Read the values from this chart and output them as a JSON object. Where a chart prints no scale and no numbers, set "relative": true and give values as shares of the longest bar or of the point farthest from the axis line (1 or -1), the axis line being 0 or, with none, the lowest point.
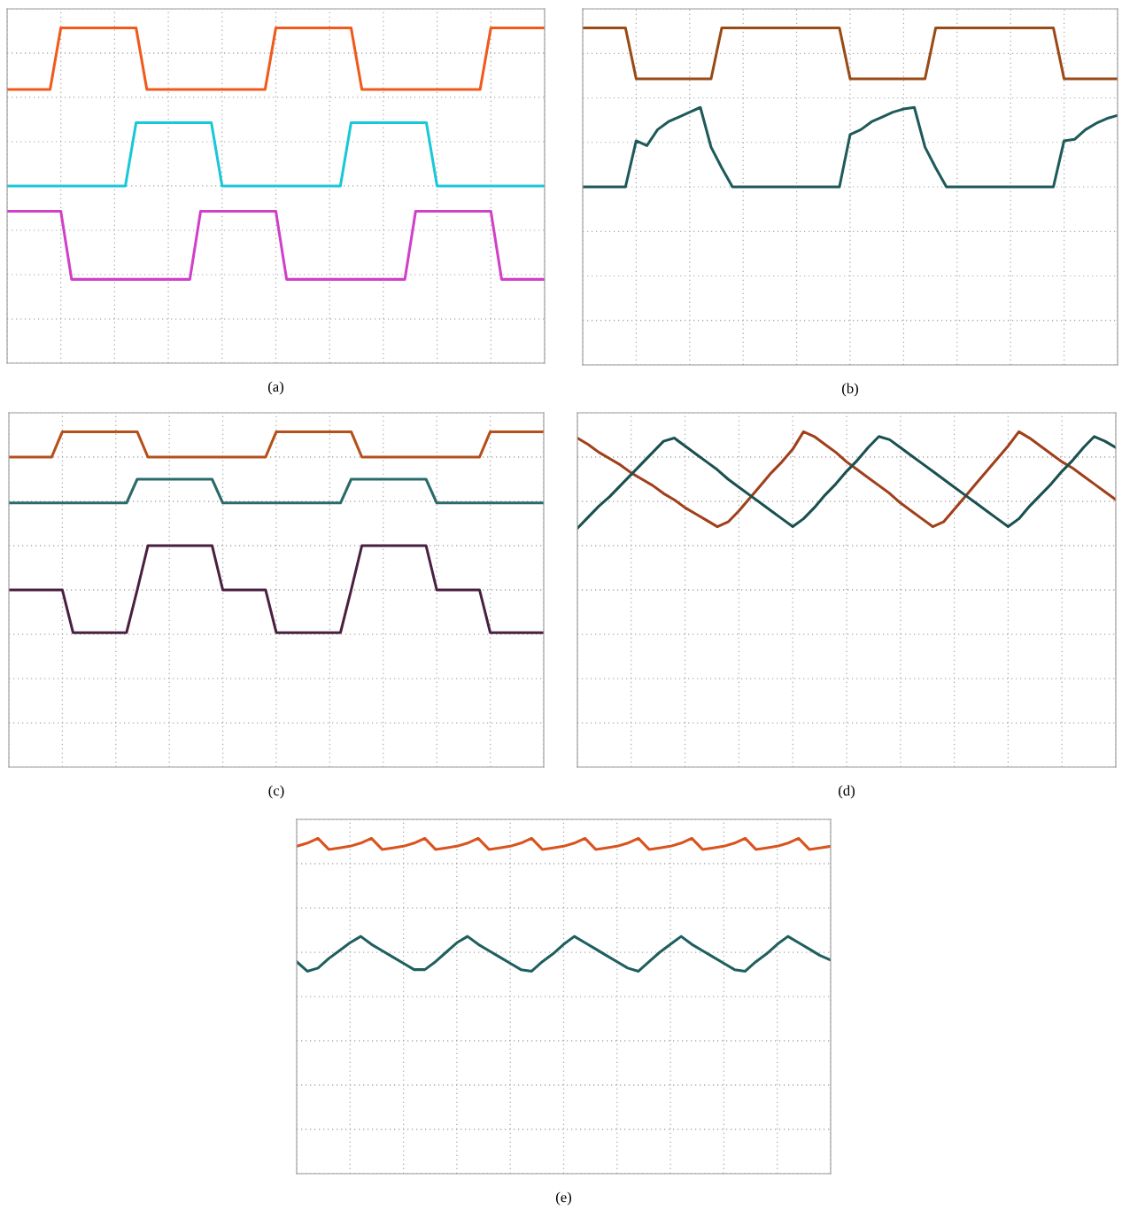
{
  "chart_data": [
    {
      "type": "line",
      "relative": true,
      "grid": true,
      "tick_labels": false,
      "annotations": [
        "(a)"
      ],
      "categories": [
        null,
        null,
        null,
        null,
        null,
        null,
        null,
        null,
        null,
        null,
        null,
        null,
        null,
        null,
        null,
        null,
        null,
        null,
        null,
        null,
        null,
        null,
        null,
        null,
        null,
        null,
        null,
        null,
        null,
        null,
        null,
        null,
        null,
        null,
        null,
        null,
        null,
        null,
        null,
        null,
        null,
        null,
        null,
        null,
        null,
        null,
        null,
        null,
        null,
        null,
        null
      ],
      "series": [
        {
          "color": "#f05a1a",
          "values": [
            0.61,
            0.61,
            0.61,
            0.61,
            0.61,
            1,
            1,
            1,
            1,
            1,
            1,
            1,
            1,
            0.61,
            0.61,
            0.61,
            0.61,
            0.61,
            0.61,
            0.61,
            0.61,
            0.61,
            0.61,
            0.61,
            0.61,
            1,
            1,
            1,
            1,
            1,
            1,
            1,
            1,
            0.61,
            0.61,
            0.61,
            0.61,
            0.61,
            0.61,
            0.61,
            0.61,
            0.61,
            0.61,
            0.61,
            0.61,
            1,
            1,
            1,
            1,
            1,
            1
          ]
        },
        {
          "color": "#19c8d8",
          "values": [
            0,
            0,
            0,
            0,
            0,
            0,
            0,
            0,
            0,
            0,
            0,
            0,
            0.4,
            0.4,
            0.4,
            0.4,
            0.4,
            0.4,
            0.4,
            0.4,
            0,
            0,
            0,
            0,
            0,
            0,
            0,
            0,
            0,
            0,
            0,
            0,
            0.4,
            0.4,
            0.4,
            0.4,
            0.4,
            0.4,
            0.4,
            0.4,
            0,
            0,
            0,
            0,
            0,
            0,
            0,
            0,
            0,
            0,
            0
          ]
        },
        {
          "color": "#d040c8",
          "values": [
            -0.16,
            -0.16,
            -0.16,
            -0.16,
            -0.16,
            -0.16,
            -0.59,
            -0.59,
            -0.59,
            -0.59,
            -0.59,
            -0.59,
            -0.59,
            -0.59,
            -0.59,
            -0.59,
            -0.59,
            -0.59,
            -0.16,
            -0.16,
            -0.16,
            -0.16,
            -0.16,
            -0.16,
            -0.16,
            -0.16,
            -0.59,
            -0.59,
            -0.59,
            -0.59,
            -0.59,
            -0.59,
            -0.59,
            -0.59,
            -0.59,
            -0.59,
            -0.59,
            -0.59,
            -0.16,
            -0.16,
            -0.16,
            -0.16,
            -0.16,
            -0.16,
            -0.16,
            -0.16,
            -0.59,
            -0.59,
            -0.59,
            -0.59,
            -0.59
          ]
        }
      ]
    },
    {
      "type": "line",
      "relative": true,
      "grid": true,
      "tick_labels": false,
      "annotations": [
        "(b)"
      ],
      "categories": [
        null,
        null,
        null,
        null,
        null,
        null,
        null,
        null,
        null,
        null,
        null,
        null,
        null,
        null,
        null,
        null,
        null,
        null,
        null,
        null,
        null,
        null,
        null,
        null,
        null,
        null,
        null,
        null,
        null,
        null,
        null,
        null,
        null,
        null,
        null,
        null,
        null,
        null,
        null,
        null,
        null,
        null,
        null,
        null,
        null,
        null,
        null,
        null,
        null,
        null,
        null
      ],
      "series": [
        {
          "color": "#9a4a14",
          "values": [
            1,
            1,
            1,
            1,
            1,
            0.68,
            0.68,
            0.68,
            0.68,
            0.68,
            0.68,
            0.68,
            0.68,
            1,
            1,
            1,
            1,
            1,
            1,
            1,
            1,
            1,
            1,
            1,
            1,
            0.68,
            0.68,
            0.68,
            0.68,
            0.68,
            0.68,
            0.68,
            0.68,
            1,
            1,
            1,
            1,
            1,
            1,
            1,
            1,
            1,
            1,
            1,
            1,
            0.68,
            0.68,
            0.68,
            0.68,
            0.68,
            0.68
          ]
        },
        {
          "color": "#1f5a5a",
          "values": [
            0,
            0,
            0,
            0,
            0,
            0.29,
            0.26,
            0.36,
            0.41,
            0.44,
            0.47,
            0.5,
            0.25,
            0.12,
            0,
            0,
            0,
            0,
            0,
            0,
            0,
            0,
            0,
            0,
            0,
            0.33,
            0.36,
            0.41,
            0.44,
            0.47,
            0.49,
            0.5,
            0.25,
            0.12,
            0,
            0,
            0,
            0,
            0,
            0,
            0,
            0,
            0,
            0,
            0,
            0.29,
            0.3,
            0.36,
            0.4,
            0.43,
            0.45
          ]
        }
      ]
    },
    {
      "type": "line",
      "relative": true,
      "grid": true,
      "tick_labels": false,
      "annotations": [
        "(c)"
      ],
      "categories": [
        null,
        null,
        null,
        null,
        null,
        null,
        null,
        null,
        null,
        null,
        null,
        null,
        null,
        null,
        null,
        null,
        null,
        null,
        null,
        null,
        null,
        null,
        null,
        null,
        null,
        null,
        null,
        null,
        null,
        null,
        null,
        null,
        null,
        null,
        null,
        null,
        null,
        null,
        null,
        null,
        null,
        null,
        null,
        null,
        null,
        null,
        null,
        null,
        null,
        null,
        null
      ],
      "series": [
        {
          "color": "#b5501a",
          "values": [
            0.84,
            0.84,
            0.84,
            0.84,
            0.84,
            1,
            1,
            1,
            1,
            1,
            1,
            1,
            1,
            0.84,
            0.84,
            0.84,
            0.84,
            0.84,
            0.84,
            0.84,
            0.84,
            0.84,
            0.84,
            0.84,
            0.84,
            1,
            1,
            1,
            1,
            1,
            1,
            1,
            1,
            0.84,
            0.84,
            0.84,
            0.84,
            0.84,
            0.84,
            0.84,
            0.84,
            0.84,
            0.84,
            0.84,
            0.84,
            1,
            1,
            1,
            1,
            1,
            1
          ]
        },
        {
          "color": "#2a6a6a",
          "values": [
            0.55,
            0.55,
            0.55,
            0.55,
            0.55,
            0.55,
            0.55,
            0.55,
            0.55,
            0.55,
            0.55,
            0.55,
            0.7,
            0.7,
            0.7,
            0.7,
            0.7,
            0.7,
            0.7,
            0.7,
            0.55,
            0.55,
            0.55,
            0.55,
            0.55,
            0.55,
            0.55,
            0.55,
            0.55,
            0.55,
            0.55,
            0.55,
            0.7,
            0.7,
            0.7,
            0.7,
            0.7,
            0.7,
            0.7,
            0.7,
            0.55,
            0.55,
            0.55,
            0.55,
            0.55,
            0.55,
            0.55,
            0.55,
            0.55,
            0.55,
            0.55
          ]
        },
        {
          "color": "#4a2040",
          "values": [
            0,
            0,
            0,
            0,
            0,
            0,
            -0.27,
            -0.27,
            -0.27,
            -0.27,
            -0.27,
            -0.27,
            0,
            0.28,
            0.28,
            0.28,
            0.28,
            0.28,
            0.28,
            0.28,
            0,
            0,
            0,
            0,
            0,
            -0.27,
            -0.27,
            -0.27,
            -0.27,
            -0.27,
            -0.27,
            -0.27,
            0,
            0.28,
            0.28,
            0.28,
            0.28,
            0.28,
            0.28,
            0.28,
            0,
            0,
            0,
            0,
            0,
            -0.27,
            -0.27,
            -0.27,
            -0.27,
            -0.27,
            -0.27
          ]
        }
      ]
    },
    {
      "type": "line",
      "relative": true,
      "grid": true,
      "tick_labels": false,
      "annotations": [
        "(d)"
      ],
      "categories": [
        null,
        null,
        null,
        null,
        null,
        null,
        null,
        null,
        null,
        null,
        null,
        null,
        null,
        null,
        null,
        null,
        null,
        null,
        null,
        null,
        null,
        null,
        null,
        null,
        null,
        null,
        null,
        null,
        null,
        null,
        null,
        null,
        null,
        null,
        null,
        null,
        null,
        null,
        null,
        null,
        null,
        null,
        null,
        null,
        null,
        null,
        null,
        null,
        null,
        null,
        null
      ],
      "series": [
        {
          "color": "#a0401a",
          "values": [
            0.96,
            0.92,
            0.87,
            0.83,
            0.79,
            0.74,
            0.7,
            0.66,
            0.61,
            0.57,
            0.52,
            0.48,
            0.44,
            0.4,
            0.43,
            0.5,
            0.58,
            0.66,
            0.74,
            0.81,
            0.89,
            1.0,
            0.97,
            0.92,
            0.87,
            0.81,
            0.76,
            0.71,
            0.66,
            0.61,
            0.55,
            0.5,
            0.45,
            0.4,
            0.43,
            0.51,
            0.59,
            0.67,
            0.75,
            0.83,
            0.91,
            1.0,
            0.96,
            0.91,
            0.86,
            0.81,
            0.77,
            0.72,
            0.67,
            0.62,
            0.57
          ]
        },
        {
          "color": "#1a5050",
          "values": [
            0.39,
            0.46,
            0.53,
            0.59,
            0.66,
            0.73,
            0.8,
            0.87,
            0.94,
            0.96,
            0.91,
            0.86,
            0.81,
            0.76,
            0.7,
            0.65,
            0.6,
            0.55,
            0.5,
            0.45,
            0.4,
            0.45,
            0.52,
            0.6,
            0.67,
            0.75,
            0.82,
            0.9,
            0.97,
            0.95,
            0.9,
            0.85,
            0.8,
            0.75,
            0.7,
            0.65,
            0.6,
            0.55,
            0.5,
            0.45,
            0.4,
            0.45,
            0.53,
            0.6,
            0.67,
            0.75,
            0.82,
            0.9,
            0.97,
            0.94,
            0.9
          ]
        }
      ]
    },
    {
      "type": "line",
      "relative": true,
      "grid": true,
      "tick_labels": false,
      "annotations": [
        "(e)"
      ],
      "categories": [
        null,
        null,
        null,
        null,
        null,
        null,
        null,
        null,
        null,
        null,
        null,
        null,
        null,
        null,
        null,
        null,
        null,
        null,
        null,
        null,
        null,
        null,
        null,
        null,
        null,
        null,
        null,
        null,
        null,
        null,
        null,
        null,
        null,
        null,
        null,
        null,
        null,
        null,
        null,
        null,
        null,
        null,
        null,
        null,
        null,
        null,
        null,
        null,
        null,
        null,
        null
      ],
      "series": [
        {
          "color": "#d9531e",
          "values": [
            0.95,
            0.97,
            1.0,
            0.93,
            0.94,
            0.95,
            0.97,
            1.0,
            0.93,
            0.94,
            0.95,
            0.97,
            1.0,
            0.93,
            0.94,
            0.95,
            0.97,
            1.0,
            0.93,
            0.94,
            0.95,
            0.97,
            1.0,
            0.93,
            0.94,
            0.95,
            0.97,
            1.0,
            0.93,
            0.94,
            0.95,
            0.97,
            1.0,
            0.93,
            0.94,
            0.95,
            0.97,
            1.0,
            0.93,
            0.94,
            0.95,
            0.97,
            1.0,
            0.93,
            0.94,
            0.95,
            0.97,
            1.0,
            0.93,
            0.94,
            0.95
          ]
        },
        {
          "color": "#1f5f5f",
          "values": [
            0.22,
            0.16,
            0.18,
            0.24,
            0.29,
            0.34,
            0.38,
            0.33,
            0.29,
            0.25,
            0.21,
            0.17,
            0.17,
            0.22,
            0.28,
            0.34,
            0.38,
            0.33,
            0.29,
            0.25,
            0.21,
            0.17,
            0.16,
            0.22,
            0.27,
            0.33,
            0.38,
            0.34,
            0.3,
            0.26,
            0.22,
            0.18,
            0.16,
            0.22,
            0.28,
            0.33,
            0.38,
            0.33,
            0.29,
            0.25,
            0.21,
            0.17,
            0.16,
            0.22,
            0.27,
            0.33,
            0.38,
            0.34,
            0.3,
            0.26,
            0.23
          ]
        }
      ]
    }
  ]
}
